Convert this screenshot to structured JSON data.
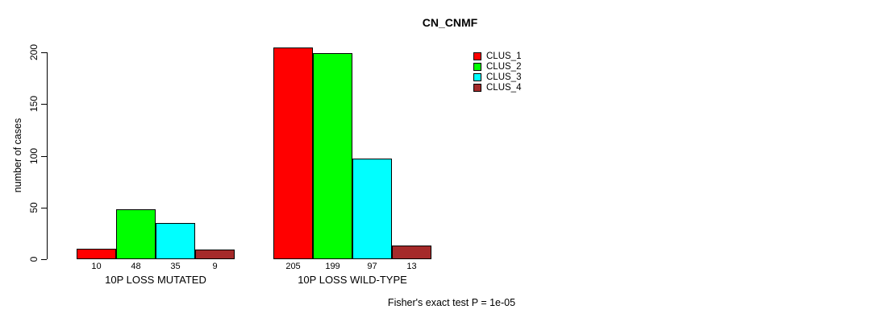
{
  "chart_data": {
    "type": "bar",
    "title": "CN_CNMF",
    "ylabel": "number of cases",
    "xlabel": "",
    "categories": [
      "10P LOSS MUTATED",
      "10P LOSS WILD-TYPE"
    ],
    "series": [
      {
        "name": "CLUS_1",
        "color": "#FF0000",
        "values": [
          10,
          205
        ]
      },
      {
        "name": "CLUS_2",
        "color": "#00FF00",
        "values": [
          48,
          199
        ]
      },
      {
        "name": "CLUS_3",
        "color": "#00FFFF",
        "values": [
          35,
          97
        ]
      },
      {
        "name": "CLUS_4",
        "color": "#A52A2A",
        "values": [
          9,
          13
        ]
      }
    ],
    "yticks": [
      0,
      50,
      100,
      150,
      200
    ],
    "ylim": [
      0,
      205
    ],
    "bar_value_labels": [
      [
        10,
        48,
        35,
        9
      ],
      [
        205,
        199,
        97,
        13
      ]
    ],
    "legend_position": "top-right",
    "grid": false,
    "bar_border_color": "#000000"
  },
  "footer": {
    "text": "Fisher's exact test P = 1e-05"
  }
}
